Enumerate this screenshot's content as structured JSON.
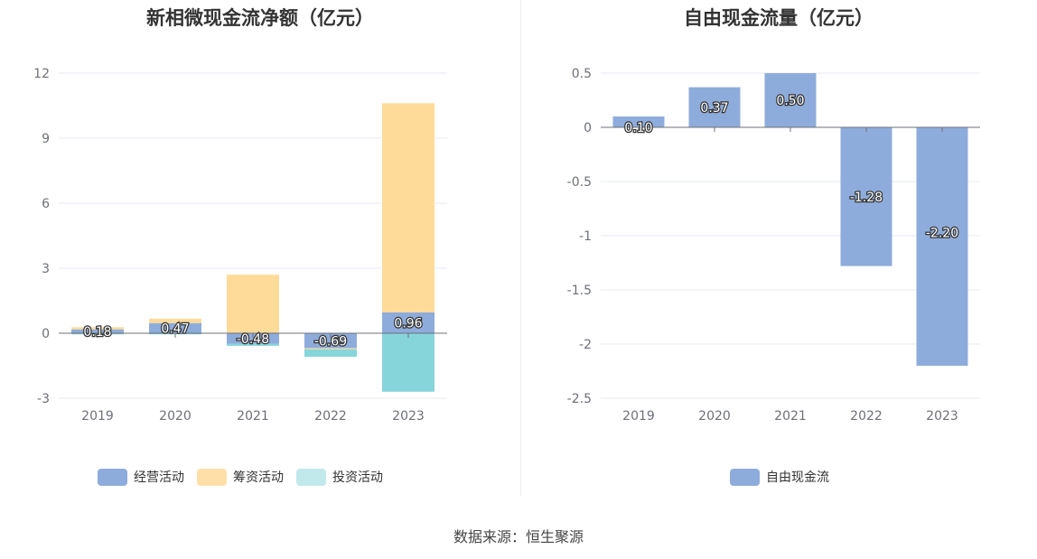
{
  "source_label": "数据来源：恒生聚源",
  "chart_data": [
    {
      "type": "bar",
      "stacked": true,
      "title": "新相微现金流净额（亿元）",
      "categories": [
        "2019",
        "2020",
        "2021",
        "2022",
        "2023"
      ],
      "series": [
        {
          "name": "经营活动",
          "color": "#8eacdb",
          "values": [
            0.18,
            0.47,
            -0.48,
            -0.69,
            0.96
          ],
          "labeled": true
        },
        {
          "name": "筹资活动",
          "color": "#ffdb9a",
          "values": [
            0.1,
            0.2,
            2.7,
            -0.05,
            9.65
          ],
          "labeled": false
        },
        {
          "name": "投资活动",
          "color": "#86d5da",
          "values": [
            -0.05,
            -0.05,
            -0.1,
            -0.35,
            -2.7
          ],
          "labeled": false
        }
      ],
      "ylim": [
        -3,
        12
      ],
      "yticks": [
        "-3",
        "0",
        "3",
        "6",
        "9",
        "12"
      ],
      "grid": true,
      "legend_position": "bottom"
    },
    {
      "type": "bar",
      "title": "自由现金流量（亿元）",
      "categories": [
        "2019",
        "2020",
        "2021",
        "2022",
        "2023"
      ],
      "series": [
        {
          "name": "自由现金流",
          "color": "#8eacdb",
          "values": [
            0.1,
            0.37,
            0.5,
            -1.28,
            -2.2
          ],
          "labels": [
            "0.10",
            "0.37",
            "0.50",
            "-1.28",
            "-2.20"
          ]
        }
      ],
      "ylim": [
        -2.5,
        0.5
      ],
      "yticks": [
        "-2.5",
        "-2",
        "-1.5",
        "-1",
        "-0.5",
        "0",
        "0.5"
      ],
      "grid": true,
      "legend_position": "bottom"
    }
  ],
  "legend1": [
    {
      "label": "经营活动",
      "color": "#8eacdb"
    },
    {
      "label": "筹资活动",
      "color": "#ffdfa8"
    },
    {
      "label": "投资活动",
      "color": "#c1e9ec"
    }
  ],
  "legend2": [
    {
      "label": "自由现金流",
      "color": "#8eacdb"
    }
  ],
  "left_value_labels": [
    "0.18",
    "0.47",
    "-0.48",
    "-0.69",
    "0.96"
  ]
}
